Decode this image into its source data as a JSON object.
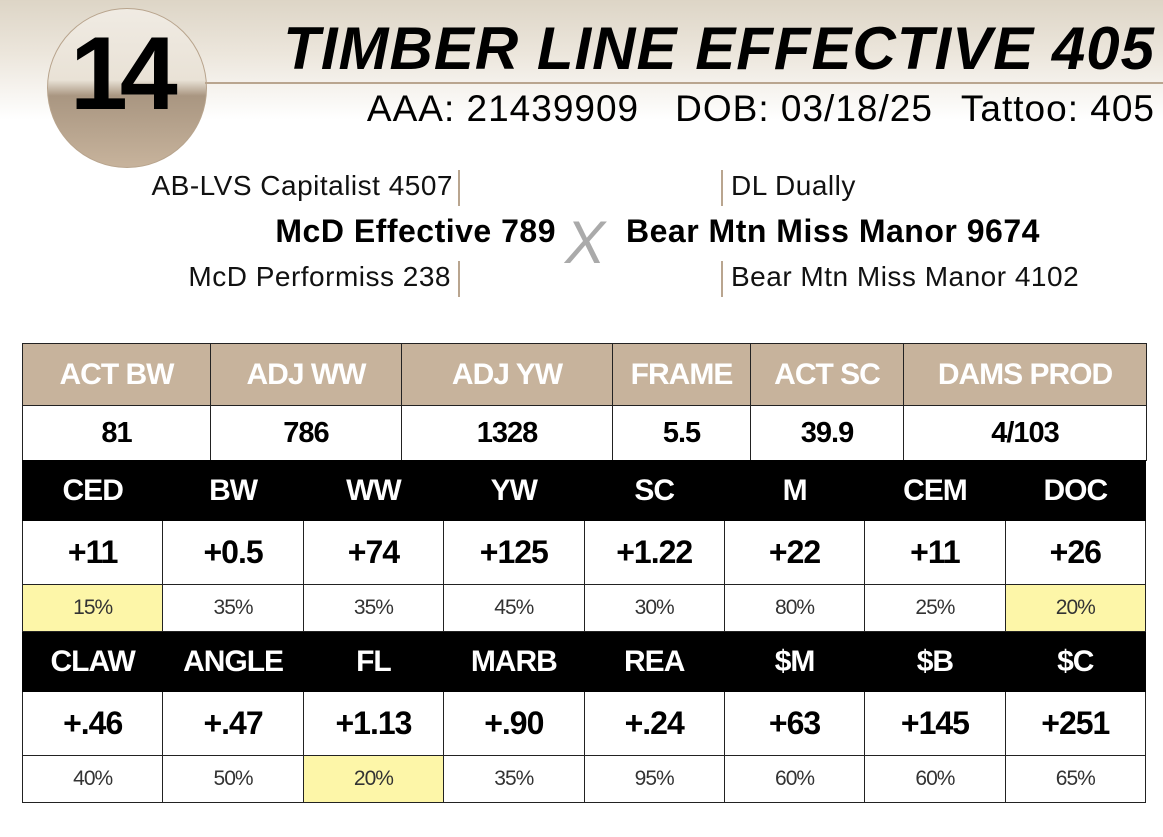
{
  "lot": "14",
  "title": "TIMBER LINE EFFECTIVE 405",
  "aaa": "AAA: 21439909",
  "dob": "DOB: 03/18/25",
  "tattoo": "Tattoo: 405",
  "pedigree": {
    "sire_sire": "AB-LVS Capitalist 4507",
    "sire": "McD Effective 789",
    "sire_dam": "McD Performiss 238",
    "dam_sire": "DL Dually",
    "dam": "Bear Mtn Miss Manor 9674",
    "dam_dam": "Bear Mtn Miss Manor 4102",
    "cross": "X"
  },
  "perf": {
    "headers": [
      "ACT BW",
      "ADJ WW",
      "ADJ YW",
      "FRAME",
      "ACT SC",
      "DAMS PROD"
    ],
    "values": [
      "81",
      "786",
      "1328",
      "5.5",
      "39.9",
      "4/103"
    ]
  },
  "epd1": {
    "headers": [
      "CED",
      "BW",
      "WW",
      "YW",
      "SC",
      "M",
      "CEM",
      "DOC"
    ],
    "values": [
      "+11",
      "+0.5",
      "+74",
      "+125",
      "+1.22",
      "+22",
      "+11",
      "+26"
    ],
    "pct": [
      "15%",
      "35%",
      "35%",
      "45%",
      "30%",
      "80%",
      "25%",
      "20%"
    ],
    "highlight": [
      true,
      false,
      false,
      false,
      false,
      false,
      false,
      true
    ]
  },
  "epd2": {
    "headers": [
      "CLAW",
      "ANGLE",
      "FL",
      "MARB",
      "REA",
      "$M",
      "$B",
      "$C"
    ],
    "values": [
      "+.46",
      "+.47",
      "+1.13",
      "+.90",
      "+.24",
      "+63",
      "+145",
      "+251"
    ],
    "pct": [
      "40%",
      "50%",
      "20%",
      "35%",
      "95%",
      "60%",
      "60%",
      "65%"
    ],
    "highlight": [
      false,
      false,
      true,
      false,
      false,
      false,
      false,
      false
    ]
  },
  "colors": {
    "tan": "#c7b39c",
    "highlight": "#fdf6a8"
  }
}
